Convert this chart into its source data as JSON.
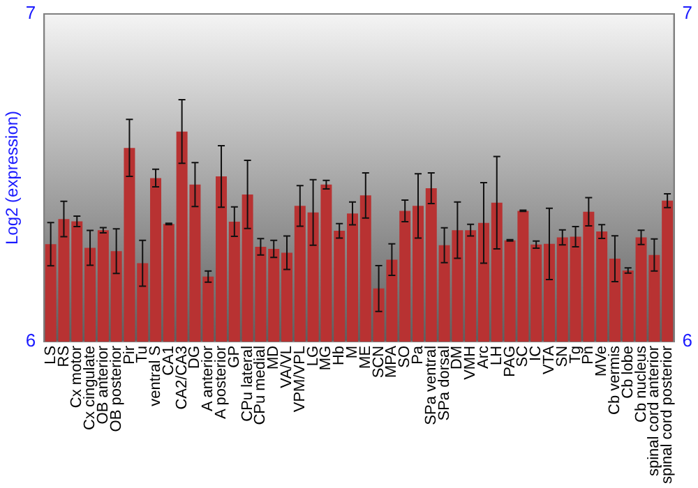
{
  "chart_data": {
    "type": "bar",
    "ylabel": "Log2 (expression)",
    "categories": [
      "LS",
      "RS",
      "Cx motor",
      "Cx cingulate",
      "OB anterior",
      "OB posterior",
      "Pir",
      "Tu",
      "ventral S",
      "CA1",
      "CA2/CA3",
      "DG",
      "A anterior",
      "A posterior",
      "GP",
      "CPu lateral",
      "CPu medial",
      "MD",
      "VA/VL",
      "VPM/VPL",
      "LG",
      "MG",
      "Hb",
      "M",
      "ME",
      "SCN",
      "MPA",
      "SO",
      "Pa",
      "SPa ventral",
      "SPa dorsal",
      "DM",
      "VMH",
      "Arc",
      "LH",
      "PAG",
      "SC",
      "IC",
      "VTA",
      "SN",
      "Tg",
      "Pn",
      "MVe",
      "Cb vermis",
      "Cb lobe",
      "Cb nucleus",
      "spinal cord anterior",
      "spinal cord posterior"
    ],
    "series": [
      {
        "color": "#b83232",
        "values": [
          6.297,
          6.374,
          6.367,
          6.286,
          6.34,
          6.276,
          6.591,
          6.239,
          6.499,
          6.359,
          6.641,
          6.479,
          6.198,
          6.504,
          6.366,
          6.449,
          6.289,
          6.283,
          6.271,
          6.414,
          6.394,
          6.479,
          6.338,
          6.391,
          6.446,
          6.162,
          6.25,
          6.399,
          6.414,
          6.468,
          6.294,
          6.34,
          6.34,
          6.362,
          6.424,
          6.309,
          6.399,
          6.296,
          6.298,
          6.318,
          6.32,
          6.396,
          6.336,
          6.253,
          6.217,
          6.318,
          6.264,
          6.43
        ],
        "errors": [
          0.066,
          0.054,
          0.016,
          0.053,
          0.008,
          0.068,
          0.087,
          0.07,
          0.027,
          0.002,
          0.097,
          0.067,
          0.017,
          0.094,
          0.045,
          0.104,
          0.025,
          0.026,
          0.051,
          0.062,
          0.1,
          0.013,
          0.022,
          0.035,
          0.069,
          0.07,
          0.048,
          0.033,
          0.098,
          0.047,
          0.053,
          0.086,
          0.018,
          0.123,
          0.141,
          0.002,
          0.002,
          0.011,
          0.109,
          0.023,
          0.031,
          0.043,
          0.021,
          0.07,
          0.008,
          0.022,
          0.049,
          0.021
        ]
      }
    ],
    "ylim": [
      6,
      7
    ],
    "yticks": [
      6,
      7
    ],
    "y2lim": [
      6,
      7
    ],
    "y2ticks": [
      6,
      7
    ],
    "grid": false,
    "legend": false
  }
}
